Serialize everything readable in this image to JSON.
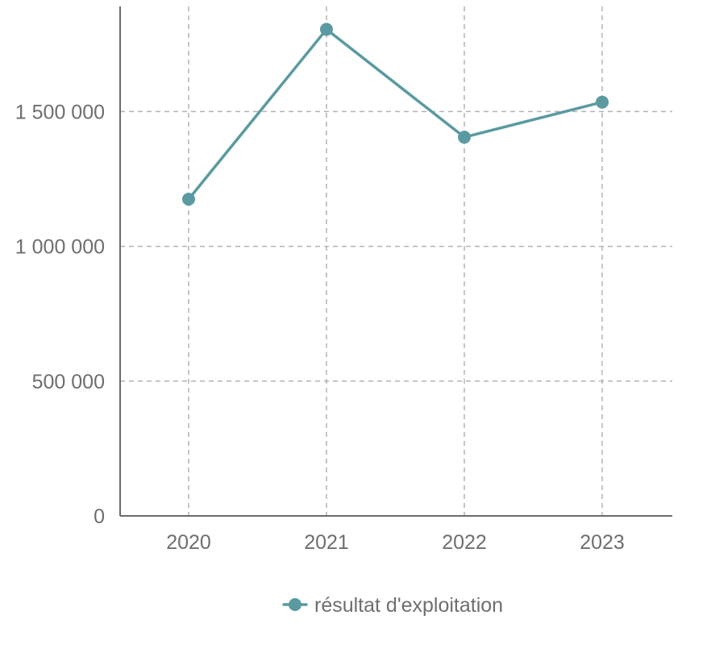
{
  "chart_data": {
    "type": "line",
    "categories": [
      "2020",
      "2021",
      "2022",
      "2023"
    ],
    "series": [
      {
        "name": "résultat d'exploitation",
        "values": [
          1175000,
          1805000,
          1405000,
          1535000
        ],
        "color": "#5a9aa0"
      }
    ],
    "y_ticks": [
      {
        "value": 0,
        "label": "0"
      },
      {
        "value": 500000,
        "label": "500 000"
      },
      {
        "value": 1000000,
        "label": "1 000 000"
      },
      {
        "value": 1500000,
        "label": "1 500 000"
      }
    ],
    "ylim": [
      0,
      1890000
    ],
    "grid": true,
    "legend": "bottom",
    "title": "",
    "xlabel": "",
    "ylabel": ""
  }
}
